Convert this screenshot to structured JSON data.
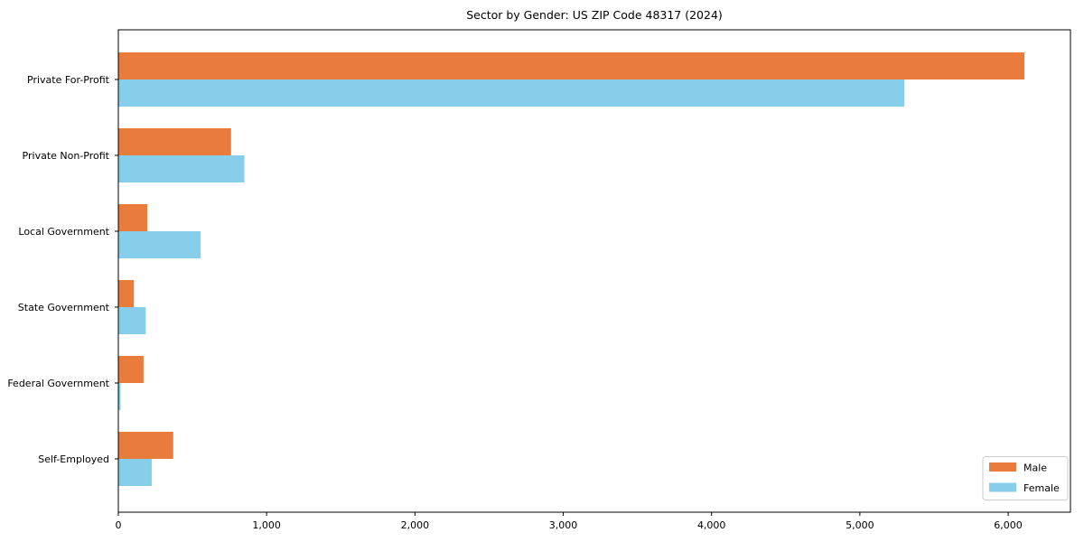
{
  "chart_data": {
    "type": "bar",
    "orientation": "horizontal",
    "title": "Sector by Gender: US ZIP Code 48317 (2024)",
    "categories": [
      "Private For-Profit",
      "Private Non-Profit",
      "Local Government",
      "State Government",
      "Federal Government",
      "Self-Employed"
    ],
    "series": [
      {
        "name": "Male",
        "color": "#E97C3C",
        "values": [
          6110,
          760,
          195,
          105,
          170,
          370
        ]
      },
      {
        "name": "Female",
        "color": "#87CEEB",
        "values": [
          5300,
          850,
          555,
          185,
          15,
          225
        ]
      }
    ],
    "xlabel": "",
    "ylabel": "",
    "xlim": [
      0,
      6420
    ],
    "x_ticks": [
      0,
      1000,
      2000,
      3000,
      4000,
      5000,
      6000
    ],
    "x_tick_labels": [
      "0",
      "1,000",
      "2,000",
      "3,000",
      "4,000",
      "5,000",
      "6,000"
    ],
    "grid": false,
    "background_color": "#ffffff",
    "frame_color": "#000000",
    "legend": {
      "position": "lower right",
      "entries": [
        "Male",
        "Female"
      ],
      "border_color": "#cccccc"
    }
  }
}
